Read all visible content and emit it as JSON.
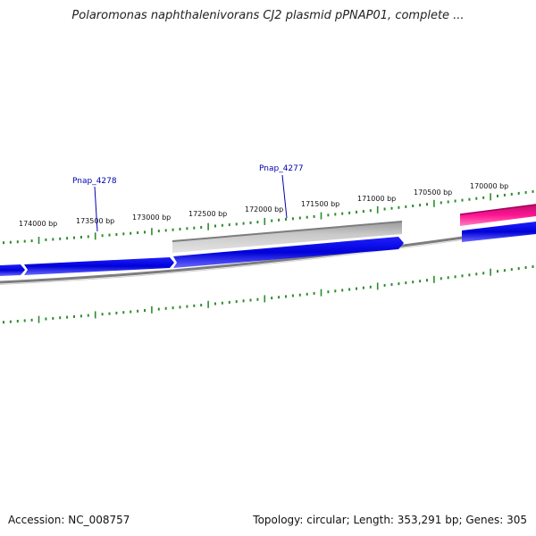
{
  "title": "Polaromonas naphthalenivorans CJ2 plasmid pPNAP01, complete ...",
  "footer": {
    "accession": "Accession: NC_008757",
    "summary": "Topology: circular; Length: 353,291 bp; Genes: 305"
  },
  "colors": {
    "tick": "#2e8b2e",
    "forward_gene": "#0000e6",
    "reverse_gene": "#b8b8b8",
    "rna_gene": "#ff1493",
    "backbone": "#808080",
    "label": "#0000b0"
  },
  "coordinate_labels": [
    {
      "text": "174000 bp"
    },
    {
      "text": "173500 bp"
    },
    {
      "text": "173000 bp"
    },
    {
      "text": "172500 bp"
    },
    {
      "text": "172000 bp"
    },
    {
      "text": "171500 bp"
    },
    {
      "text": "171000 bp"
    },
    {
      "text": "170500 bp"
    },
    {
      "text": "170000 bp"
    }
  ],
  "gene_labels": [
    {
      "text": "Pnap_4278"
    },
    {
      "text": "Pnap_4277"
    }
  ]
}
